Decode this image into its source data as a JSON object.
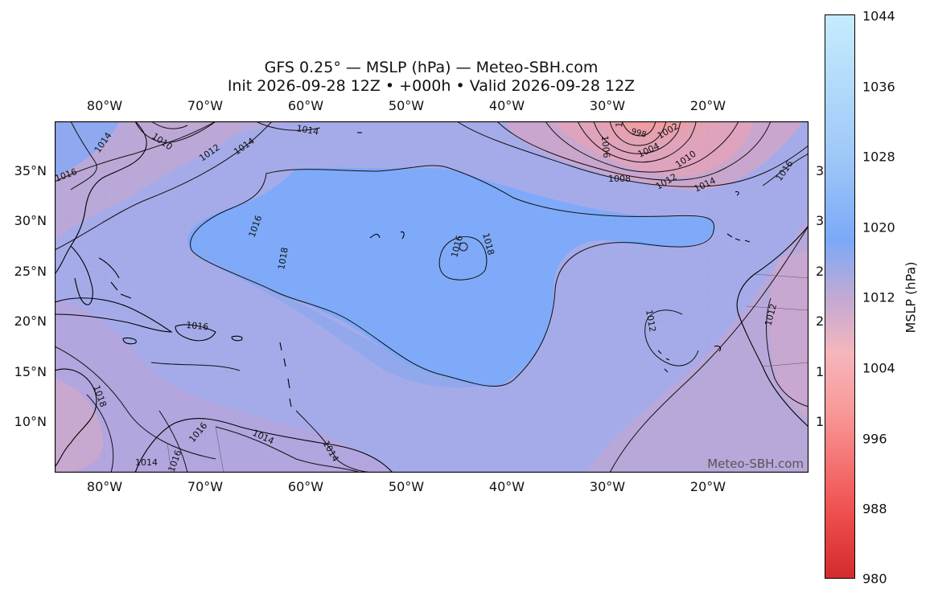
{
  "title": {
    "line1": "GFS 0.25° — MSLP (hPa) — Meteo-SBH.com",
    "line2": "Init 2026-09-28 12Z • +000h • Valid 2026-09-28 12Z"
  },
  "axes": {
    "lon_labels": [
      "80°W",
      "70°W",
      "60°W",
      "50°W",
      "40°W",
      "30°W",
      "20°W"
    ],
    "lat_labels": [
      "35°N",
      "30°N",
      "25°N",
      "20°N",
      "15°N",
      "10°N"
    ],
    "right_cut_labels": [
      "3",
      "3",
      "2",
      "2",
      "1",
      "1"
    ]
  },
  "colorbar": {
    "label": "MSLP (hPa)",
    "ticks": [
      "1044",
      "1036",
      "1028",
      "1020",
      "1012",
      "1004",
      "996",
      "988",
      "980"
    ],
    "min": 980,
    "max": 1044,
    "low_color": "#d32b2b",
    "mid_color": "#7ba9f7",
    "high_color": "#c5ecfd"
  },
  "contour_labels": {
    "west": [
      "1014",
      "1016",
      "1010",
      "1012",
      "1014",
      "1014",
      "1016",
      "1018"
    ],
    "central": [
      "1018",
      "1016",
      "1016",
      "1018"
    ],
    "northeast_low": [
      "1000",
      "998",
      "1002",
      "1006",
      "1004",
      "1008",
      "1010",
      "1012",
      "1014",
      "1016"
    ],
    "east": [
      "1012",
      "1012"
    ],
    "south": [
      "1016",
      "1016",
      "1018",
      "1014",
      "1014",
      "1016",
      "1014"
    ]
  },
  "watermark": "Meteo-SBH.com",
  "chart_data": {
    "type": "map",
    "variable": "MSLP (hPa)",
    "model": "GFS 0.25°",
    "extent": {
      "lon": [
        -85,
        -10
      ],
      "lat": [
        5,
        40
      ]
    },
    "pressure_systems": [
      {
        "kind": "low",
        "lon": -26,
        "lat": 40,
        "min_contour": 998
      },
      {
        "kind": "high",
        "lon": -44,
        "lat": 27,
        "max_contour": 1018
      },
      {
        "kind": "low",
        "lon": -75,
        "lat": 40,
        "min_contour": 1010
      },
      {
        "kind": "low",
        "lon": -24,
        "lat": 21,
        "min_contour": 1012
      }
    ]
  }
}
